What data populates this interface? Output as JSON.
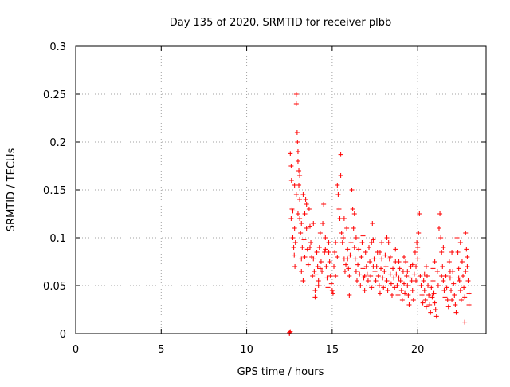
{
  "chart_data": {
    "type": "scatter",
    "title": "Day 135 of 2020, SRMTID for receiver plbb",
    "xlabel": "GPS time / hours",
    "ylabel": "SRMTID / TECUs",
    "xlim": [
      0,
      24
    ],
    "ylim": [
      0,
      0.3
    ],
    "x_ticks": [
      0,
      5,
      10,
      15,
      20
    ],
    "x_tick_labels": [
      "0",
      "5",
      "10",
      "15",
      "20"
    ],
    "y_ticks": [
      0,
      0.05,
      0.1,
      0.15,
      0.2,
      0.25,
      0.3
    ],
    "y_tick_labels": [
      "0",
      "0.05",
      "0.1",
      "0.15",
      "0.2",
      "0.25",
      "0.3"
    ],
    "grid": true,
    "marker": "plus",
    "color": "#ff0000",
    "series": [
      {
        "name": "SRMTID",
        "points": [
          [
            12.5,
            0.0
          ],
          [
            12.5,
            0.001
          ],
          [
            12.55,
            0.002
          ],
          [
            12.55,
            0.188
          ],
          [
            12.6,
            0.175
          ],
          [
            12.62,
            0.16
          ],
          [
            12.65,
            0.13
          ],
          [
            12.6,
            0.12
          ],
          [
            12.7,
            0.128
          ],
          [
            12.7,
            0.1
          ],
          [
            12.75,
            0.09
          ],
          [
            12.78,
            0.082
          ],
          [
            12.8,
            0.11
          ],
          [
            12.82,
            0.07
          ],
          [
            12.85,
            0.095
          ],
          [
            12.9,
            0.25
          ],
          [
            12.9,
            0.24
          ],
          [
            12.95,
            0.21
          ],
          [
            12.97,
            0.2
          ],
          [
            13.0,
            0.19
          ],
          [
            13.0,
            0.18
          ],
          [
            13.05,
            0.17
          ],
          [
            13.05,
            0.155
          ],
          [
            13.1,
            0.14
          ],
          [
            13.1,
            0.12
          ],
          [
            13.15,
            0.105
          ],
          [
            13.2,
            0.078
          ],
          [
            13.2,
            0.065
          ],
          [
            13.25,
            0.09
          ],
          [
            13.3,
            0.055
          ],
          [
            13.35,
            0.098
          ],
          [
            13.4,
            0.125
          ],
          [
            13.45,
            0.14
          ],
          [
            13.5,
            0.11
          ],
          [
            13.55,
            0.088
          ],
          [
            13.6,
            0.072
          ],
          [
            13.65,
            0.13
          ],
          [
            13.7,
            0.112
          ],
          [
            13.75,
            0.095
          ],
          [
            13.8,
            0.08
          ],
          [
            13.85,
            0.06
          ],
          [
            13.9,
            0.078
          ],
          [
            13.95,
            0.065
          ],
          [
            14.0,
            0.045
          ],
          [
            14.0,
            0.038
          ],
          [
            14.05,
            0.062
          ],
          [
            14.1,
            0.085
          ],
          [
            14.15,
            0.07
          ],
          [
            14.2,
            0.055
          ],
          [
            14.25,
            0.09
          ],
          [
            14.3,
            0.105
          ],
          [
            14.35,
            0.075
          ],
          [
            14.4,
            0.065
          ],
          [
            14.45,
            0.115
          ],
          [
            14.5,
            0.135
          ],
          [
            14.55,
            0.085
          ],
          [
            14.6,
            0.1
          ],
          [
            14.65,
            0.07
          ],
          [
            14.7,
            0.058
          ],
          [
            14.75,
            0.048
          ],
          [
            14.8,
            0.085
          ],
          [
            14.85,
            0.075
          ],
          [
            14.9,
            0.06
          ],
          [
            14.95,
            0.052
          ],
          [
            15.0,
            0.045
          ],
          [
            15.05,
            0.042
          ],
          [
            15.1,
            0.07
          ],
          [
            15.15,
            0.085
          ],
          [
            15.2,
            0.095
          ],
          [
            15.3,
            0.155
          ],
          [
            15.35,
            0.145
          ],
          [
            15.4,
            0.13
          ],
          [
            15.45,
            0.12
          ],
          [
            15.5,
            0.187
          ],
          [
            15.5,
            0.165
          ],
          [
            15.55,
            0.105
          ],
          [
            15.6,
            0.095
          ],
          [
            15.65,
            0.1
          ],
          [
            15.7,
            0.078
          ],
          [
            15.75,
            0.065
          ],
          [
            15.8,
            0.072
          ],
          [
            15.85,
            0.11
          ],
          [
            15.9,
            0.088
          ],
          [
            15.95,
            0.068
          ],
          [
            16.0,
            0.06
          ],
          [
            16.05,
            0.082
          ],
          [
            16.1,
            0.095
          ],
          [
            16.15,
            0.15
          ],
          [
            16.2,
            0.13
          ],
          [
            16.25,
            0.11
          ],
          [
            16.3,
            0.09
          ],
          [
            16.35,
            0.078
          ],
          [
            16.4,
            0.065
          ],
          [
            16.45,
            0.055
          ],
          [
            16.5,
            0.072
          ],
          [
            16.55,
            0.088
          ],
          [
            16.6,
            0.062
          ],
          [
            16.65,
            0.05
          ],
          [
            16.7,
            0.08
          ],
          [
            16.75,
            0.095
          ],
          [
            16.8,
            0.068
          ],
          [
            16.85,
            0.058
          ],
          [
            16.9,
            0.045
          ],
          [
            16.95,
            0.085
          ],
          [
            17.0,
            0.07
          ],
          [
            17.05,
            0.062
          ],
          [
            17.1,
            0.055
          ],
          [
            17.15,
            0.09
          ],
          [
            17.2,
            0.075
          ],
          [
            17.25,
            0.06
          ],
          [
            17.3,
            0.048
          ],
          [
            17.35,
            0.115
          ],
          [
            17.4,
            0.098
          ],
          [
            17.45,
            0.078
          ],
          [
            17.5,
            0.065
          ],
          [
            17.55,
            0.055
          ],
          [
            17.6,
            0.07
          ],
          [
            17.65,
            0.085
          ],
          [
            17.7,
            0.06
          ],
          [
            17.75,
            0.05
          ],
          [
            17.8,
            0.042
          ],
          [
            17.85,
            0.068
          ],
          [
            17.9,
            0.078
          ],
          [
            17.95,
            0.058
          ],
          [
            18.0,
            0.048
          ],
          [
            18.05,
            0.065
          ],
          [
            18.1,
            0.082
          ],
          [
            18.15,
            0.07
          ],
          [
            18.2,
            0.055
          ],
          [
            18.25,
            0.045
          ],
          [
            18.3,
            0.095
          ],
          [
            18.35,
            0.078
          ],
          [
            18.4,
            0.062
          ],
          [
            18.45,
            0.052
          ],
          [
            18.5,
            0.04
          ],
          [
            18.55,
            0.068
          ],
          [
            18.6,
            0.058
          ],
          [
            18.65,
            0.048
          ],
          [
            18.7,
            0.075
          ],
          [
            18.75,
            0.062
          ],
          [
            18.8,
            0.05
          ],
          [
            18.85,
            0.04
          ],
          [
            18.9,
            0.058
          ],
          [
            18.95,
            0.068
          ],
          [
            19.0,
            0.055
          ],
          [
            19.05,
            0.045
          ],
          [
            19.1,
            0.035
          ],
          [
            19.15,
            0.065
          ],
          [
            19.2,
            0.052
          ],
          [
            19.25,
            0.042
          ],
          [
            19.3,
            0.075
          ],
          [
            19.35,
            0.06
          ],
          [
            19.4,
            0.05
          ],
          [
            19.45,
            0.04
          ],
          [
            19.5,
            0.03
          ],
          [
            19.55,
            0.058
          ],
          [
            19.6,
            0.07
          ],
          [
            19.65,
            0.055
          ],
          [
            19.7,
            0.045
          ],
          [
            19.75,
            0.035
          ],
          [
            19.8,
            0.062
          ],
          [
            19.85,
            0.085
          ],
          [
            19.9,
            0.07
          ],
          [
            19.95,
            0.095
          ],
          [
            20.0,
            0.078
          ],
          [
            20.05,
            0.105
          ],
          [
            20.1,
            0.125
          ],
          [
            20.15,
            0.06
          ],
          [
            20.2,
            0.05
          ],
          [
            20.25,
            0.04
          ],
          [
            20.3,
            0.032
          ],
          [
            20.35,
            0.055
          ],
          [
            20.4,
            0.045
          ],
          [
            20.45,
            0.035
          ],
          [
            20.5,
            0.028
          ],
          [
            20.55,
            0.06
          ],
          [
            20.6,
            0.05
          ],
          [
            20.65,
            0.04
          ],
          [
            20.7,
            0.03
          ],
          [
            20.75,
            0.022
          ],
          [
            20.8,
            0.048
          ],
          [
            20.85,
            0.038
          ],
          [
            20.9,
            0.055
          ],
          [
            20.95,
            0.042
          ],
          [
            21.0,
            0.032
          ],
          [
            21.05,
            0.025
          ],
          [
            21.1,
            0.018
          ],
          [
            21.15,
            0.065
          ],
          [
            21.2,
            0.05
          ],
          [
            21.25,
            0.11
          ],
          [
            21.3,
            0.125
          ],
          [
            21.35,
            0.1
          ],
          [
            21.4,
            0.085
          ],
          [
            21.45,
            0.07
          ],
          [
            21.5,
            0.055
          ],
          [
            21.55,
            0.045
          ],
          [
            21.6,
            0.038
          ],
          [
            21.65,
            0.06
          ],
          [
            21.7,
            0.048
          ],
          [
            21.75,
            0.035
          ],
          [
            21.8,
            0.028
          ],
          [
            21.85,
            0.075
          ],
          [
            21.9,
            0.058
          ],
          [
            21.95,
            0.045
          ],
          [
            22.0,
            0.035
          ],
          [
            22.05,
            0.065
          ],
          [
            22.1,
            0.052
          ],
          [
            22.15,
            0.04
          ],
          [
            22.2,
            0.03
          ],
          [
            22.25,
            0.022
          ],
          [
            22.3,
            0.1
          ],
          [
            22.35,
            0.085
          ],
          [
            22.4,
            0.068
          ],
          [
            22.45,
            0.055
          ],
          [
            22.5,
            0.045
          ],
          [
            22.55,
            0.035
          ],
          [
            22.6,
            0.075
          ],
          [
            22.65,
            0.06
          ],
          [
            22.7,
            0.048
          ],
          [
            22.75,
            0.038
          ],
          [
            22.75,
            0.012
          ],
          [
            22.8,
            0.105
          ],
          [
            22.85,
            0.088
          ],
          [
            22.9,
            0.07
          ],
          [
            22.95,
            0.055
          ],
          [
            23.0,
            0.042
          ],
          [
            23.0,
            0.03
          ],
          [
            13.1,
            0.165
          ],
          [
            13.3,
            0.145
          ],
          [
            13.5,
            0.135
          ],
          [
            13.9,
            0.115
          ],
          [
            14.2,
            0.05
          ],
          [
            14.6,
            0.088
          ],
          [
            15.2,
            0.06
          ],
          [
            15.7,
            0.12
          ],
          [
            16.0,
            0.04
          ],
          [
            16.3,
            0.125
          ],
          [
            16.8,
            0.102
          ],
          [
            17.3,
            0.095
          ],
          [
            17.8,
            0.085
          ],
          [
            18.2,
            0.1
          ],
          [
            18.7,
            0.088
          ],
          [
            19.2,
            0.08
          ],
          [
            19.7,
            0.072
          ],
          [
            20.0,
            0.09
          ],
          [
            20.5,
            0.07
          ],
          [
            21.0,
            0.075
          ],
          [
            21.5,
            0.09
          ],
          [
            22.0,
            0.085
          ],
          [
            22.5,
            0.095
          ],
          [
            22.9,
            0.08
          ],
          [
            12.8,
            0.155
          ],
          [
            12.9,
            0.145
          ],
          [
            13.0,
            0.125
          ],
          [
            13.2,
            0.115
          ],
          [
            13.4,
            0.08
          ],
          [
            13.7,
            0.09
          ],
          [
            14.3,
            0.068
          ],
          [
            14.8,
            0.095
          ],
          [
            15.3,
            0.08
          ],
          [
            15.9,
            0.078
          ],
          [
            16.4,
            0.1
          ],
          [
            16.9,
            0.06
          ],
          [
            17.4,
            0.07
          ],
          [
            17.9,
            0.095
          ],
          [
            18.4,
            0.08
          ],
          [
            18.9,
            0.075
          ],
          [
            19.4,
            0.065
          ],
          [
            19.9,
            0.055
          ],
          [
            20.4,
            0.062
          ],
          [
            20.9,
            0.068
          ],
          [
            21.4,
            0.06
          ],
          [
            21.9,
            0.065
          ],
          [
            22.4,
            0.058
          ],
          [
            22.8,
            0.065
          ]
        ]
      }
    ]
  }
}
